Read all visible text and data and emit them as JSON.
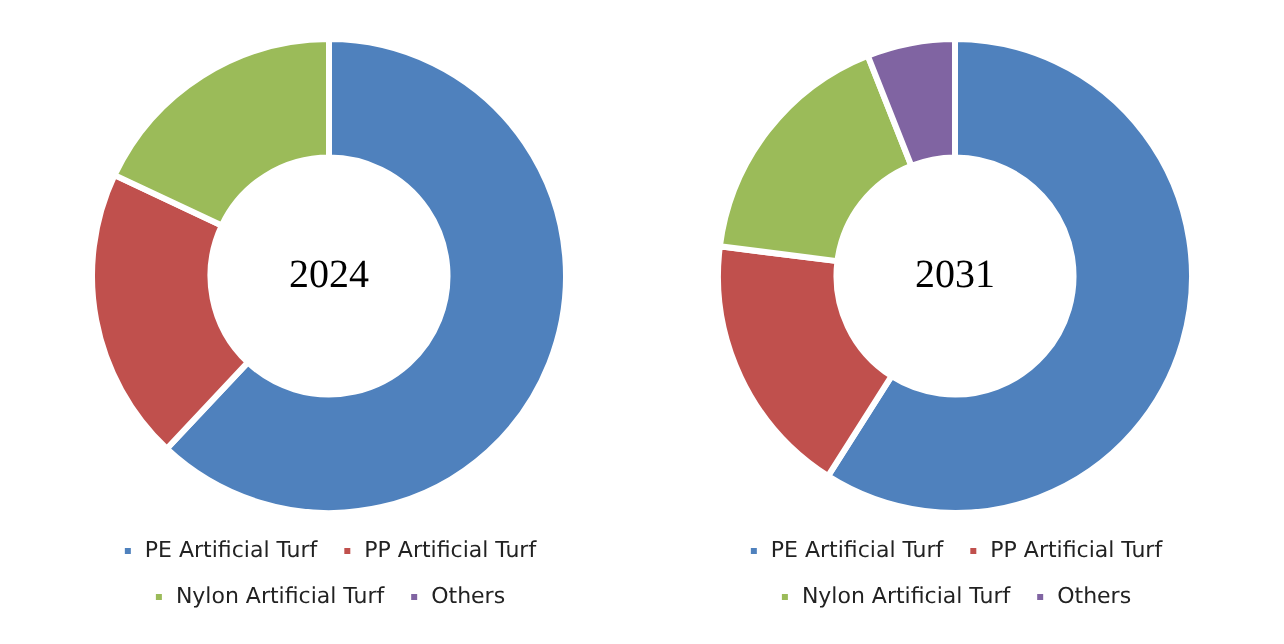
{
  "chart_data": [
    {
      "type": "donut",
      "title": "2024",
      "categories": [
        "PE Artificial Turf",
        "PP Artificial Turf",
        "Nylon Artificial Turf",
        "Others"
      ],
      "values": [
        62,
        20,
        18,
        0
      ],
      "colors": [
        "#4f81bd",
        "#c0504d",
        "#9bbb59",
        "#8064a2"
      ],
      "legend": "bottom"
    },
    {
      "type": "donut",
      "title": "2031",
      "categories": [
        "PE Artificial Turf",
        "PP Artificial Turf",
        "Nylon Artificial Turf",
        "Others"
      ],
      "values": [
        59,
        18,
        17,
        6
      ],
      "colors": [
        "#4f81bd",
        "#c0504d",
        "#9bbb59",
        "#8064a2"
      ],
      "legend": "bottom"
    }
  ]
}
